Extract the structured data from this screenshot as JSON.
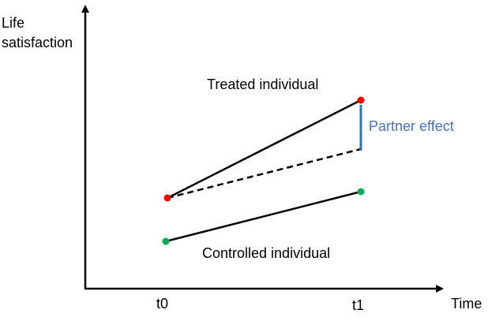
{
  "axes": {
    "y_label_line1": "Life",
    "y_label_line2": "satisfaction",
    "x_label": "Time",
    "ticks": [
      "t0",
      "t1"
    ]
  },
  "labels": {
    "treated": "Treated individual",
    "controlled": "Controlled individual",
    "partner_effect": "Partner effect"
  },
  "colors": {
    "axis": "#000000",
    "line": "#000000",
    "treated_point": "#ff0000",
    "controlled_point": "#00b050",
    "partner_effect": "#4472c4",
    "partner_bracket": "#2e75b6"
  }
}
